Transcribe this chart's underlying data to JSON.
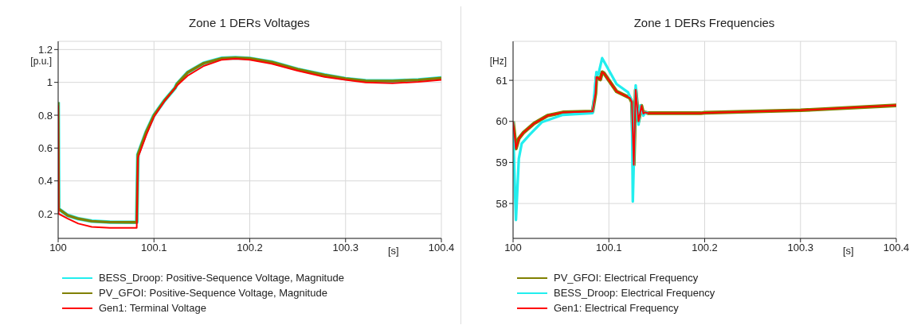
{
  "chart_data": [
    {
      "type": "line",
      "title": "Zone 1 DERs  Voltages",
      "xlabel": "[s]",
      "ylabel": "[p.u.]",
      "xlim": [
        100,
        100.4
      ],
      "xticks": [
        100,
        100.1,
        100.2,
        100.3,
        100.4
      ],
      "ylim": [
        0.05,
        1.25
      ],
      "yticks": [
        0.2,
        0.4,
        0.6,
        0.8,
        1,
        1.2
      ],
      "grid": true,
      "legend": "bottom",
      "series": [
        {
          "name": "BESS_Droop: Positive-Sequence Voltage, Magnitude",
          "color": "#22eeee",
          "x": [
            100,
            100.0005,
            100.01,
            100.021,
            100.035,
            100.054,
            100.082,
            100.0832,
            100.092,
            100.1,
            100.111,
            100.122,
            100.124,
            100.135,
            100.152,
            100.171,
            100.185,
            100.2,
            100.223,
            100.25,
            100.278,
            100.3,
            100.321,
            100.349,
            100.376,
            100.4
          ],
          "values": [
            0.88,
            0.23,
            0.19,
            0.17,
            0.155,
            0.149,
            0.148,
            0.56,
            0.7,
            0.8,
            0.89,
            0.966,
            0.99,
            1.06,
            1.117,
            1.147,
            1.15,
            1.146,
            1.124,
            1.08,
            1.045,
            1.023,
            1.01,
            1.009,
            1.015,
            1.027
          ]
        },
        {
          "name": "PV_GFOI: Positive-Sequence Voltage, Magnitude",
          "color": "#808000",
          "x": [
            100,
            100.0005,
            100.01,
            100.021,
            100.035,
            100.054,
            100.082,
            100.0832,
            100.092,
            100.1,
            100.111,
            100.122,
            100.124,
            100.135,
            100.152,
            100.171,
            100.185,
            100.2,
            100.223,
            100.25,
            100.278,
            100.3,
            100.321,
            100.349,
            100.376,
            100.4
          ],
          "values": [
            0.88,
            0.23,
            0.19,
            0.17,
            0.155,
            0.149,
            0.148,
            0.56,
            0.7,
            0.8,
            0.89,
            0.966,
            0.99,
            1.06,
            1.117,
            1.147,
            1.15,
            1.146,
            1.124,
            1.08,
            1.045,
            1.023,
            1.01,
            1.009,
            1.015,
            1.027
          ]
        },
        {
          "name": "Gen1: Terminal Voltage",
          "color": "#ff0000",
          "x": [
            100,
            100.0005,
            100.01,
            100.021,
            100.035,
            100.054,
            100.082,
            100.0832,
            100.092,
            100.1,
            100.111,
            100.124,
            100.135,
            100.152,
            100.171,
            100.185,
            100.2,
            100.223,
            100.25,
            100.278,
            100.3,
            100.321,
            100.349,
            100.376,
            100.4
          ],
          "values": [
            0.86,
            0.2,
            0.17,
            0.14,
            0.12,
            0.114,
            0.114,
            0.54,
            0.68,
            0.79,
            0.886,
            0.98,
            1.04,
            1.1,
            1.138,
            1.143,
            1.138,
            1.113,
            1.071,
            1.033,
            1.015,
            1.0,
            0.995,
            1.003,
            1.015
          ]
        }
      ]
    },
    {
      "type": "line",
      "title": "Zone 1 DERs  Frequencies",
      "xlabel": "[s]",
      "ylabel": "[Hz]",
      "xlim": [
        100,
        100.4
      ],
      "xticks": [
        100,
        100.1,
        100.2,
        100.3,
        100.4
      ],
      "ylim": [
        57.15,
        61.95
      ],
      "yticks": [
        58,
        59,
        60,
        61
      ],
      "grid": true,
      "legend": "bottom",
      "series": [
        {
          "name": "PV_GFOI: Electrical Frequency",
          "color": "#808000",
          "x": [
            100,
            100.003,
            100.006,
            100.011,
            100.022,
            100.036,
            100.052,
            100.083,
            100.086,
            100.087,
            100.091,
            100.093,
            100.095,
            100.108,
            100.122,
            100.124,
            100.126,
            100.128,
            100.131,
            100.134,
            100.136,
            100.138,
            100.141,
            100.196,
            100.2,
            100.3,
            100.4
          ],
          "values": [
            60.0,
            59.34,
            59.58,
            59.73,
            59.95,
            60.14,
            60.22,
            60.24,
            60.68,
            61.08,
            61.02,
            61.2,
            61.17,
            60.73,
            60.57,
            60.47,
            58.94,
            60.77,
            60.0,
            60.38,
            60.19,
            60.22,
            60.2,
            60.2,
            60.21,
            60.27,
            60.39
          ]
        },
        {
          "name": "BESS_Droop: Electrical Frequency",
          "color": "#22eeee",
          "x": [
            100,
            100.0015,
            100.003,
            100.006,
            100.009,
            100.017,
            100.03,
            100.052,
            100.083,
            100.087,
            100.089,
            100.093,
            100.108,
            100.12,
            100.124,
            100.125,
            100.128,
            100.131,
            100.133,
            100.136,
            100.138,
            100.141
          ],
          "values": [
            60.0,
            58.66,
            57.6,
            59.09,
            59.46,
            59.67,
            59.98,
            60.16,
            60.2,
            61.2,
            61.14,
            61.54,
            60.91,
            60.71,
            60.5,
            58.05,
            60.88,
            59.92,
            60.39,
            60.14,
            60.22,
            60.2
          ]
        },
        {
          "name": "Gen1: Electrical Frequency",
          "color": "#ff0000",
          "x": [
            100,
            100.003,
            100.006,
            100.011,
            100.022,
            100.036,
            100.052,
            100.083,
            100.086,
            100.087,
            100.091,
            100.093,
            100.095,
            100.108,
            100.122,
            100.124,
            100.126,
            100.128,
            100.131,
            100.134,
            100.136,
            100.138,
            100.141,
            100.196,
            100.2,
            100.3,
            100.4
          ],
          "values": [
            60.0,
            59.34,
            59.58,
            59.73,
            59.95,
            60.14,
            60.22,
            60.24,
            60.68,
            61.08,
            61.02,
            61.2,
            61.17,
            60.73,
            60.57,
            60.47,
            58.94,
            60.77,
            60.0,
            60.38,
            60.19,
            60.22,
            60.2,
            60.2,
            60.21,
            60.27,
            60.39
          ]
        }
      ]
    }
  ]
}
